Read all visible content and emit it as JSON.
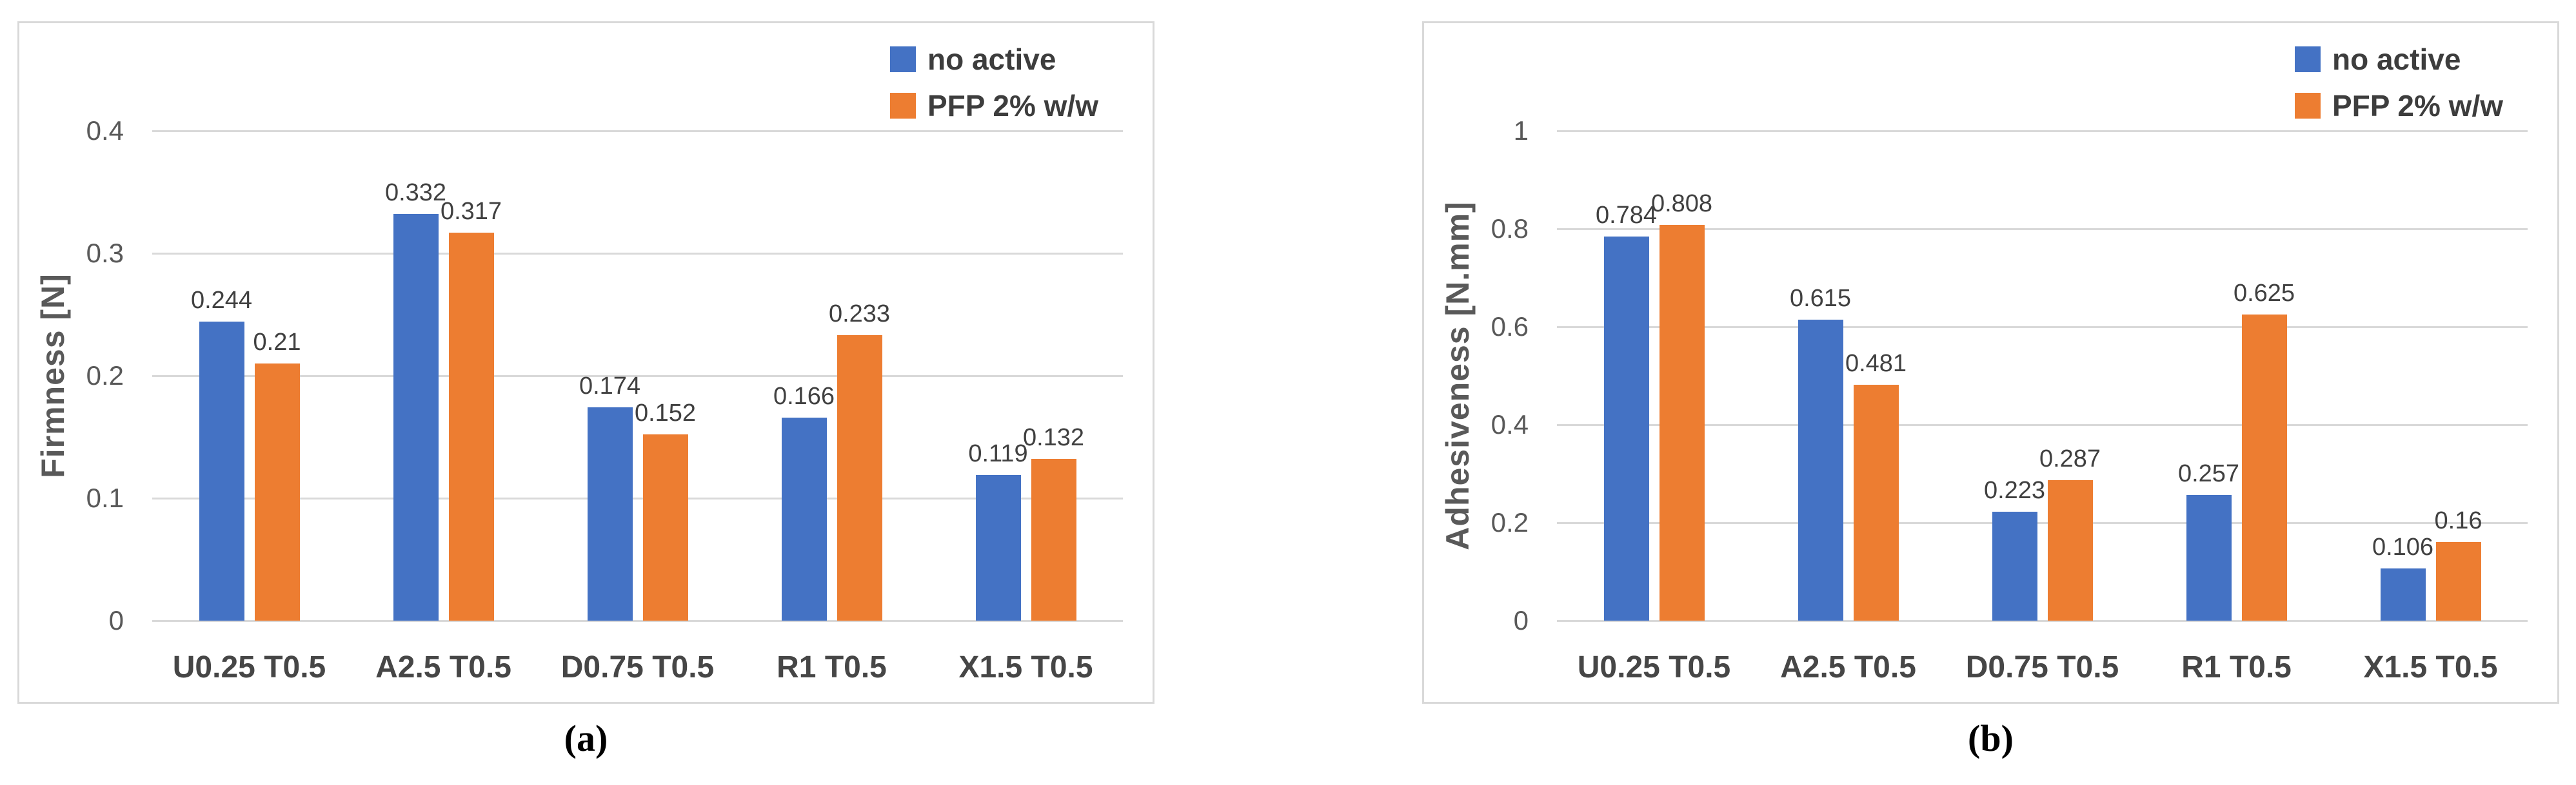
{
  "figure": {
    "background": "#ffffff",
    "panel_border_color": "#d9d9d9",
    "gridline_color": "#d9d9d9",
    "tick_label_color": "#595959",
    "data_label_color": "#404040",
    "category_label_color": "#464646",
    "legend_text_color": "#3d3d3d",
    "accent_blue": "#4472C4",
    "accent_orange": "#ED7D31",
    "captions": {
      "a": "(a)",
      "b": "(b)"
    }
  },
  "chart_data": [
    {
      "type": "bar",
      "caption": "(a)",
      "title": "",
      "xlabel": "",
      "ylabel": "Firmness [N]",
      "ylim": [
        0,
        0.4
      ],
      "grid": true,
      "legend_position": "top-right",
      "categories": [
        "U0.25 T0.5",
        "A2.5 T0.5",
        "D0.75 T0.5",
        "R1 T0.5",
        "X1.5 T0.5"
      ],
      "yticks": [
        {
          "value": 0,
          "label": "0"
        },
        {
          "value": 0.1,
          "label": "0.1"
        },
        {
          "value": 0.2,
          "label": "0.2"
        },
        {
          "value": 0.3,
          "label": "0.3"
        },
        {
          "value": 0.4,
          "label": "0.4"
        }
      ],
      "series": [
        {
          "name": "no active",
          "color": "#4472C4",
          "values": [
            0.244,
            0.332,
            0.174,
            0.166,
            0.119
          ]
        },
        {
          "name": "PFP 2% w/w",
          "color": "#ED7D31",
          "values": [
            0.21,
            0.317,
            0.152,
            0.233,
            0.132
          ]
        }
      ]
    },
    {
      "type": "bar",
      "caption": "(b)",
      "title": "",
      "xlabel": "",
      "ylabel": "Adhesiveness [N.mm]",
      "ylim": [
        0,
        1
      ],
      "grid": true,
      "legend_position": "top-right",
      "categories": [
        "U0.25 T0.5",
        "A2.5 T0.5",
        "D0.75 T0.5",
        "R1 T0.5",
        "X1.5 T0.5"
      ],
      "yticks": [
        {
          "value": 0,
          "label": "0"
        },
        {
          "value": 0.2,
          "label": "0.2"
        },
        {
          "value": 0.4,
          "label": "0.4"
        },
        {
          "value": 0.6,
          "label": "0.6"
        },
        {
          "value": 0.8,
          "label": "0.8"
        },
        {
          "value": 1,
          "label": "1"
        }
      ],
      "series": [
        {
          "name": "no active",
          "color": "#4472C4",
          "values": [
            0.784,
            0.615,
            0.223,
            0.257,
            0.106
          ]
        },
        {
          "name": "PFP 2% w/w",
          "color": "#ED7D31",
          "values": [
            0.808,
            0.481,
            0.287,
            0.625,
            0.16
          ]
        }
      ]
    }
  ]
}
